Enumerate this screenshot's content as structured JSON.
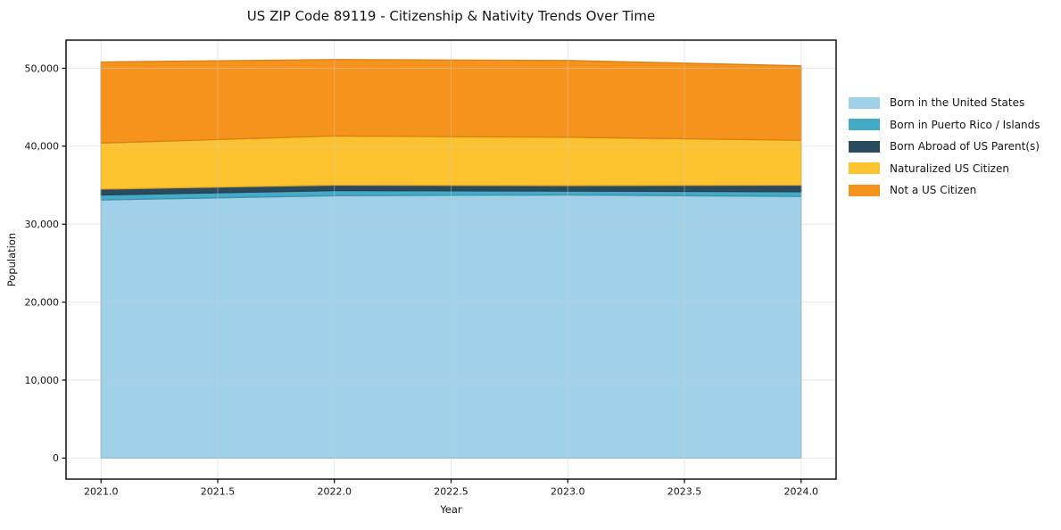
{
  "figure": {
    "background": "#ffffff",
    "spine_color": "#000000",
    "grid_color": "#cccccc",
    "text_color": "#141414"
  },
  "chart_data": {
    "type": "area",
    "stacked": true,
    "title": "US ZIP Code 89119 - Citizenship & Nativity Trends Over Time",
    "xlabel": "Year",
    "ylabel": "Population",
    "x": [
      2021,
      2022,
      2023,
      2024
    ],
    "series": [
      {
        "name": "Born in the United States",
        "color": "#A0D1E8",
        "values": [
          33100,
          33650,
          33750,
          33550
        ]
      },
      {
        "name": "Born in Puerto Rico / Islands",
        "color": "#45AAC6",
        "values": [
          650,
          660,
          500,
          610
        ]
      },
      {
        "name": "Born Abroad of US Parent(s)",
        "color": "#2A4A5E",
        "values": [
          750,
          700,
          700,
          850
        ]
      },
      {
        "name": "Naturalized US Citizen",
        "color": "#FDC32E",
        "values": [
          5900,
          6300,
          6200,
          5750
        ]
      },
      {
        "name": "Not a US Citizen",
        "color": "#F6931D",
        "values": [
          10400,
          9800,
          9850,
          9550
        ]
      }
    ],
    "xlim": [
      2020.85,
      2024.15
    ],
    "ylim": [
      -2700,
      53600
    ],
    "x_ticks": [
      {
        "v": 2021.0,
        "label": "2021.0"
      },
      {
        "v": 2021.5,
        "label": "2021.5"
      },
      {
        "v": 2022.0,
        "label": "2022.0"
      },
      {
        "v": 2022.5,
        "label": "2022.5"
      },
      {
        "v": 2023.0,
        "label": "2023.0"
      },
      {
        "v": 2023.5,
        "label": "2023.5"
      },
      {
        "v": 2024.0,
        "label": "2024.0"
      }
    ],
    "y_ticks": [
      {
        "v": 0,
        "label": "0"
      },
      {
        "v": 10000,
        "label": "10,000"
      },
      {
        "v": 20000,
        "label": "20,000"
      },
      {
        "v": 30000,
        "label": "30,000"
      },
      {
        "v": 40000,
        "label": "40,000"
      },
      {
        "v": 50000,
        "label": "50,000"
      }
    ],
    "grid": true,
    "legend_position": "right"
  }
}
